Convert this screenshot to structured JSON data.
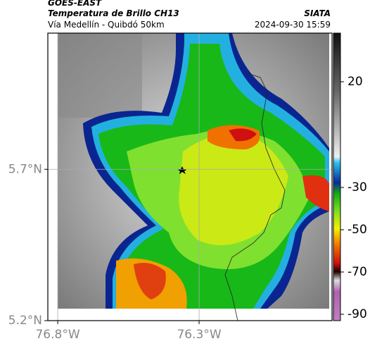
{
  "header": {
    "source": "GOES-EAST",
    "title": "Temperatura de Brillo CH13",
    "brand": "SIATA",
    "subtitle": "Vía Medellín - Quibdó 50km",
    "timestamp": "2024-09-30 15:59"
  },
  "map": {
    "lonlim": [
      -76.835,
      -75.83
    ],
    "latlim": [
      5.2,
      6.15
    ],
    "xticks": [
      {
        "value": -76.8,
        "label": "76.8°W"
      },
      {
        "value": -76.3,
        "label": "76.3°W"
      }
    ],
    "yticks": [
      {
        "value": 5.7,
        "label": "5.7°N"
      },
      {
        "value": 5.2,
        "label": "5.2°N"
      }
    ],
    "grid": true
  },
  "colorbar": {
    "lim": [
      43,
      -93
    ],
    "ticks": [
      20,
      -30,
      -50,
      -70,
      -90
    ]
  }
}
